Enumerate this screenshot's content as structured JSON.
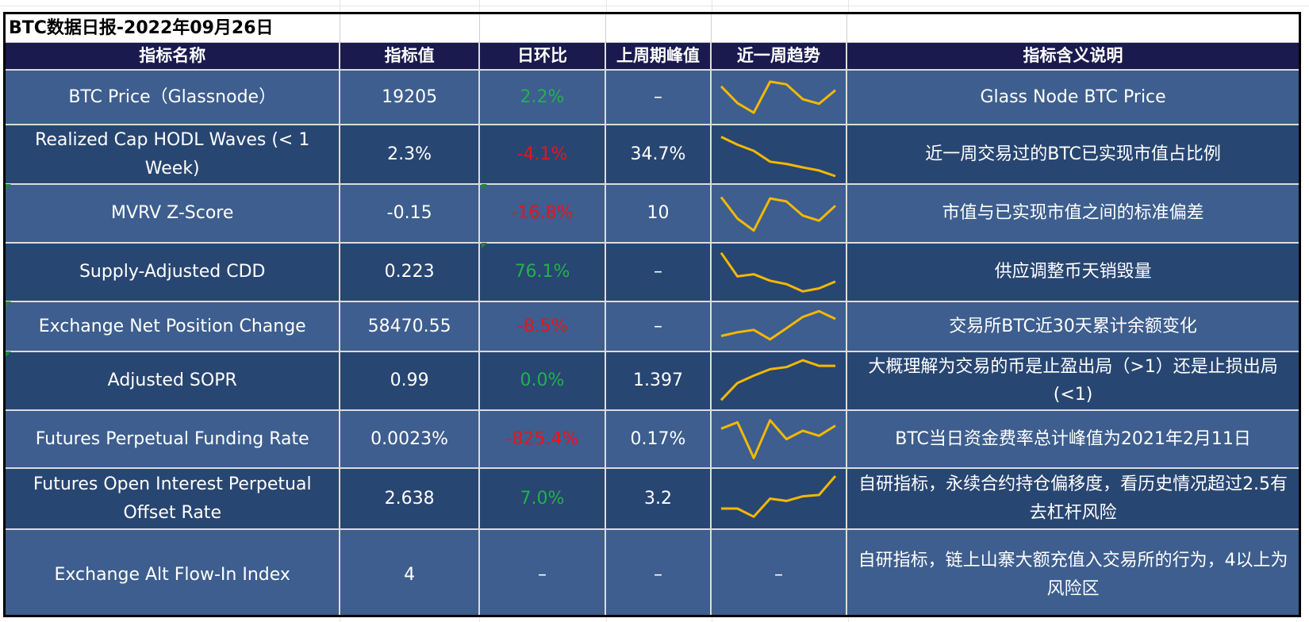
{
  "report": {
    "title": "BTC数据日报-2022年09月26日",
    "headers": [
      "指标名称",
      "指标值",
      "日环比",
      "上周期峰值",
      "近一周趋势",
      "指标含义说明"
    ],
    "colors": {
      "header_bg": "#1a1a4e",
      "row_light": "#3d5e8e",
      "row_dark": "#284672",
      "positive": "#22b14c",
      "negative": "#e8141c",
      "sparkline": "#f5b800"
    },
    "rows": [
      {
        "name": "BTC Price（Glassnode）",
        "value": "19205",
        "change": "2.2%",
        "change_color": "positive",
        "prev_peak": "–",
        "trend": [
          0.78,
          0.35,
          0.1,
          0.9,
          0.83,
          0.45,
          0.33,
          0.68
        ],
        "meaning": "Glass Node BTC Price"
      },
      {
        "name": "Realized Cap HODL Waves (< 1 Week)",
        "value": "2.3%",
        "change": "-4.1%",
        "change_color": "negative",
        "prev_peak": "34.7%",
        "trend": [
          0.9,
          0.72,
          0.58,
          0.33,
          0.28,
          0.2,
          0.13,
          0.0
        ],
        "meaning": "近一周交易过的BTC已实现市值占比例"
      },
      {
        "name": "MVRV Z-Score",
        "value": "-0.15",
        "change": "-16.8%",
        "change_color": "negative",
        "prev_peak": "10",
        "trend": [
          0.88,
          0.38,
          0.1,
          0.85,
          0.78,
          0.45,
          0.33,
          0.68
        ],
        "meaning": "市值与已实现市值之间的标准偏差"
      },
      {
        "name": "Supply-Adjusted CDD",
        "value": "0.223",
        "change": "76.1%",
        "change_color": "positive",
        "prev_peak": "–",
        "trend": [
          0.95,
          0.4,
          0.45,
          0.3,
          0.22,
          0.05,
          0.12,
          0.28
        ],
        "meaning": "供应调整币天销毁量"
      },
      {
        "name": "Exchange Net Position Change",
        "value": "58470.55",
        "change": "-8.5%",
        "change_color": "negative",
        "prev_peak": "–",
        "trend": [
          0.22,
          0.33,
          0.4,
          0.12,
          0.45,
          0.78,
          0.95,
          0.72
        ],
        "meaning": "交易所BTC近30天累计余额变化"
      },
      {
        "name": "Adjusted SOPR",
        "value": "0.99",
        "change": "0.0%",
        "change_color": "positive",
        "prev_peak": "1.397",
        "trend": [
          0.05,
          0.45,
          0.62,
          0.77,
          0.82,
          0.98,
          0.85,
          0.85
        ],
        "meaning": "大概理解为交易的币是止盈出局（>1）还是止损出局(<1)"
      },
      {
        "name": "Futures Perpetual Funding Rate",
        "value": "0.0023%",
        "change": "-825.4%",
        "change_color": "negative",
        "prev_peak": "0.17%",
        "trend": [
          0.75,
          0.9,
          0.05,
          0.95,
          0.5,
          0.7,
          0.58,
          0.82
        ],
        "meaning": "BTC当日资金费率总计峰值为2021年2月11日"
      },
      {
        "name": "Futures Open Interest Perpetual Offset Rate",
        "value": "2.638",
        "change": "7.0%",
        "change_color": "positive",
        "prev_peak": "3.2",
        "trend": [
          0.28,
          0.28,
          0.1,
          0.5,
          0.45,
          0.55,
          0.58,
          1.0
        ],
        "meaning": "自研指标，永续合约持仓偏移度，看历史情况超过2.5有去杠杆风险"
      },
      {
        "name": "Exchange Alt Flow-In Index",
        "value": "4",
        "change": "–",
        "change_color": "none",
        "prev_peak": "–",
        "trend_text": "–",
        "meaning": "自研指标，链上山寨大额充值入交易所的行为，4以上为风险区"
      }
    ]
  }
}
